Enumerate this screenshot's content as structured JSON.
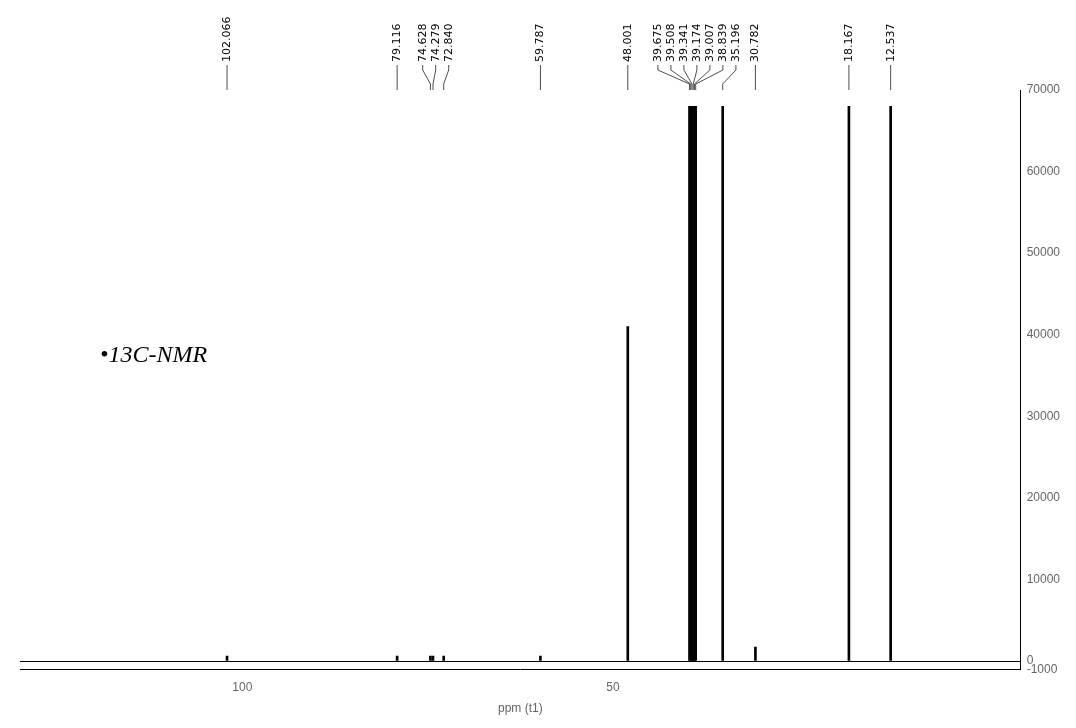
{
  "chart_data": {
    "type": "bar",
    "x": [
      102.066,
      79.116,
      74.628,
      74.279,
      72.84,
      59.787,
      48.001,
      39.675,
      39.508,
      39.341,
      39.174,
      39.007,
      38.839,
      35.196,
      30.782,
      18.167,
      12.537
    ],
    "values": [
      600,
      600,
      600,
      600,
      600,
      600,
      41000,
      68000,
      68000,
      68000,
      68000,
      68000,
      68000,
      68000,
      1700,
      68000,
      68000
    ],
    "peak_labels": [
      "102.066",
      "79.116",
      "74.628",
      "74.279",
      "72.840",
      "59.787",
      "48.001",
      "39.675",
      "39.508",
      "39.341",
      "39.174",
      "39.007",
      "38.839",
      "35.196",
      "30.782",
      "18.167",
      "12.537"
    ],
    "annotation": "•13C-NMR",
    "xlabel": "ppm (t1)",
    "xlim": [
      130,
      -5
    ],
    "xticks": [
      100,
      50
    ],
    "ylim": [
      -1000,
      70000
    ],
    "yticks": [
      -1000,
      0,
      10000,
      20000,
      30000,
      40000,
      50000,
      60000,
      70000
    ],
    "color": "#000000",
    "grid": false
  }
}
